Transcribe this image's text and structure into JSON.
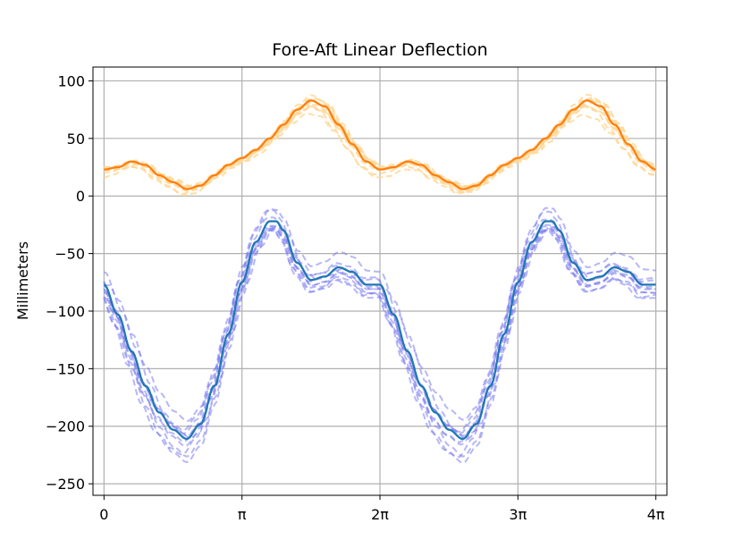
{
  "chart_data": {
    "type": "line",
    "title": "Fore-Aft Linear Deflection",
    "xlabel": "",
    "ylabel": "Millimeters",
    "xlim": [
      -0.08,
      4.08
    ],
    "ylim": [
      -260,
      112
    ],
    "x_unit": "pi",
    "xticks": [
      {
        "value": 0,
        "label": "0"
      },
      {
        "value": 1,
        "label": "π"
      },
      {
        "value": 2,
        "label": "2π"
      },
      {
        "value": 3,
        "label": "3π"
      },
      {
        "value": 4,
        "label": "4π"
      }
    ],
    "yticks": [
      100,
      50,
      0,
      -50,
      -100,
      -150,
      -200,
      -250
    ],
    "grid": true,
    "colors": {
      "orange_mean": "#ff7f0e",
      "orange_samples": "#ffd89a",
      "blue_mean": "#1f77b4",
      "blue_samples": "#7b7bef"
    },
    "series": [
      {
        "role": "mean",
        "color": "#ff7f0e",
        "x": [
          0,
          0.1,
          0.2,
          0.3,
          0.4,
          0.5,
          0.6,
          0.7,
          0.8,
          0.9,
          1.0,
          1.1,
          1.2,
          1.3,
          1.4,
          1.5,
          1.6,
          1.7,
          1.8,
          1.9,
          2.0,
          2.1,
          2.2,
          2.3,
          2.4,
          2.5,
          2.6,
          2.7,
          2.8,
          2.9,
          3.0,
          3.1,
          3.2,
          3.3,
          3.4,
          3.5,
          3.6,
          3.7,
          3.8,
          3.9,
          4.0
        ],
        "y": [
          23,
          25,
          30,
          27,
          18,
          12,
          6,
          9,
          18,
          27,
          33,
          40,
          50,
          62,
          75,
          83,
          78,
          62,
          45,
          30,
          23,
          25,
          30,
          27,
          18,
          12,
          6,
          9,
          18,
          27,
          33,
          40,
          50,
          62,
          75,
          83,
          78,
          62,
          45,
          30,
          23
        ]
      },
      {
        "role": "mean",
        "color": "#1f77b4",
        "x": [
          0,
          0.1,
          0.2,
          0.3,
          0.4,
          0.5,
          0.6,
          0.7,
          0.8,
          0.9,
          1.0,
          1.1,
          1.2,
          1.25,
          1.3,
          1.4,
          1.5,
          1.6,
          1.7,
          1.8,
          1.9,
          2.0,
          2.1,
          2.2,
          2.3,
          2.4,
          2.5,
          2.6,
          2.7,
          2.8,
          2.9,
          3.0,
          3.1,
          3.2,
          3.25,
          3.3,
          3.4,
          3.5,
          3.6,
          3.7,
          3.8,
          3.9,
          4.0
        ],
        "y": [
          -77,
          -103,
          -135,
          -165,
          -188,
          -203,
          -211,
          -198,
          -165,
          -120,
          -75,
          -40,
          -22,
          -22,
          -30,
          -58,
          -73,
          -70,
          -62,
          -66,
          -77,
          -77,
          -103,
          -135,
          -165,
          -188,
          -203,
          -211,
          -198,
          -165,
          -120,
          -75,
          -40,
          -22,
          -22,
          -30,
          -58,
          -73,
          -70,
          -62,
          -66,
          -77,
          -77
        ]
      }
    ]
  }
}
